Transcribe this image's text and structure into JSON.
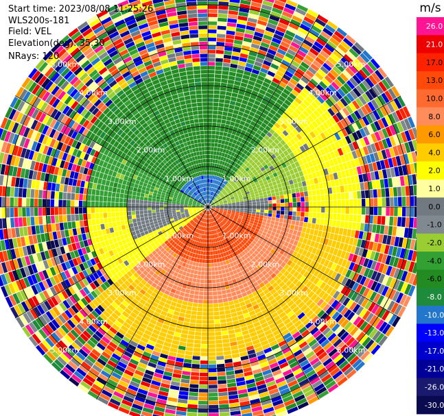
{
  "header": {
    "start_time": "Start time: 2023/08/08 11:25:26",
    "instrument": "WLS200s-181",
    "field": "Field: VEL",
    "elevation": "Elevation(deg): 35.30",
    "nrays": "NRays: 120"
  },
  "chart_data": {
    "type": "ppi-polar",
    "field": "VEL",
    "n_rays": 120,
    "elevation_deg": 35.3,
    "range_rings_km": [
      1.0,
      2.0,
      3.0,
      4.0,
      5.0
    ],
    "ring_label_texts": [
      "1.00km",
      "2.00km",
      "3.00km",
      "4.00km",
      "5.00km"
    ],
    "max_range_km": 5.5,
    "gate_km": 0.1,
    "spoke_angles_deg": [
      0,
      30,
      60,
      90,
      120,
      150,
      180,
      210,
      240,
      270,
      300,
      330
    ],
    "colorbar": {
      "unit": "m/s",
      "range": [
        -30,
        30
      ],
      "tick_values": [
        26,
        21,
        17,
        13,
        10,
        8,
        6,
        4,
        2,
        1,
        0,
        -1,
        -2,
        -4,
        -6,
        -8,
        -10,
        -13,
        -17,
        -21,
        -26,
        -30
      ],
      "tick_labels": [
        "26.0",
        "21.0",
        "17.0",
        "13.0",
        "10.0",
        "8.0",
        "6.0",
        "4.0",
        "2.0",
        "1.0",
        "0.0",
        "-1.0",
        "-2.0",
        "-4.0",
        "-6.0",
        "-8.0",
        "-10.0",
        "-13.0",
        "-17.0",
        "-21.0",
        "-26.0",
        "-30.0"
      ],
      "colors": [
        "#ff1493",
        "#ee0000",
        "#ff2200",
        "#ff4a0a",
        "#ff6a30",
        "#ff8c5a",
        "#ff9900",
        "#ffcc00",
        "#ffff00",
        "#ffffa0",
        "#707a80",
        "#808890",
        "#9acd32",
        "#33a033",
        "#228b22",
        "#1e8a3c",
        "#2277cc",
        "#0000ff",
        "#0000cc",
        "#000099",
        "#191970",
        "#0a0a50"
      ]
    },
    "near_field_pattern": {
      "description_free": true,
      "sectors": [
        {
          "from_deg": 300,
          "to_deg": 360,
          "inner_km": 0.0,
          "outer_km": 0.8,
          "value": -10
        },
        {
          "from_deg": 0,
          "to_deg": 40,
          "inner_km": 0.0,
          "outer_km": 0.8,
          "value": -10
        },
        {
          "from_deg": 270,
          "to_deg": 300,
          "inner_km": 0.0,
          "outer_km": 3.0,
          "value": -4
        },
        {
          "from_deg": 300,
          "to_deg": 360,
          "inner_km": 0.8,
          "outer_km": 3.5,
          "value": -6
        },
        {
          "from_deg": 0,
          "to_deg": 40,
          "inner_km": 0.8,
          "outer_km": 3.5,
          "value": -6
        },
        {
          "from_deg": 40,
          "to_deg": 80,
          "inner_km": 0.0,
          "outer_km": 2.5,
          "value": -2
        },
        {
          "from_deg": 80,
          "to_deg": 100,
          "inner_km": 0.0,
          "outer_km": 1.5,
          "value": 0
        },
        {
          "from_deg": 40,
          "to_deg": 100,
          "inner_km": 2.5,
          "outer_km": 3.8,
          "value": 2
        },
        {
          "from_deg": 100,
          "to_deg": 230,
          "inner_km": 0.0,
          "outer_km": 1.4,
          "value": 13
        },
        {
          "from_deg": 100,
          "to_deg": 230,
          "inner_km": 1.4,
          "outer_km": 2.4,
          "value": 8
        },
        {
          "from_deg": 100,
          "to_deg": 230,
          "inner_km": 2.4,
          "outer_km": 3.8,
          "value": 4
        },
        {
          "from_deg": 230,
          "to_deg": 270,
          "inner_km": 0.0,
          "outer_km": 3.0,
          "value": 2
        },
        {
          "from_deg": 245,
          "to_deg": 275,
          "inner_km": 0.5,
          "outer_km": 2.0,
          "value": 0
        }
      ]
    }
  }
}
